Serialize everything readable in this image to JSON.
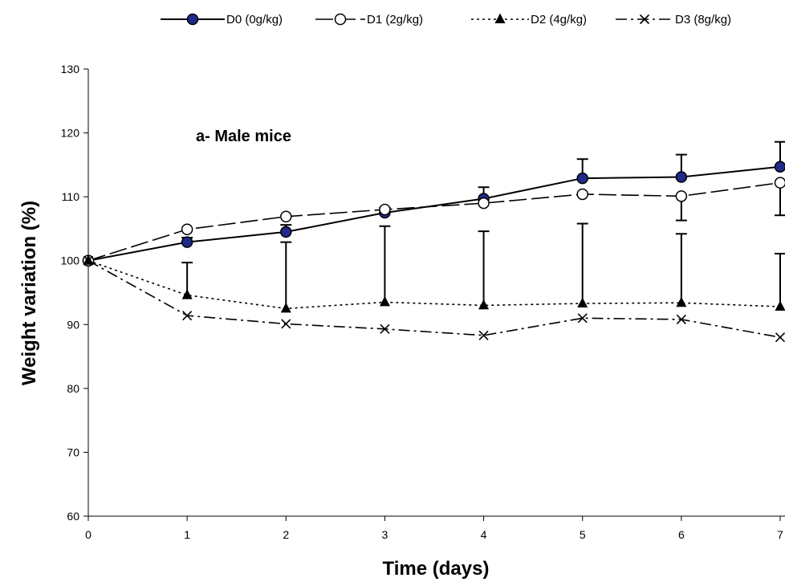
{
  "chart_data": {
    "type": "line",
    "title": "",
    "annotation": "a-  Male mice",
    "xlabel": "Time (days)",
    "ylabel": "Weight variation  (%)",
    "x": [
      0,
      1,
      2,
      3,
      4,
      5,
      6,
      7
    ],
    "xlim": [
      0,
      7
    ],
    "ylim": [
      60,
      130
    ],
    "yticks": [
      60,
      70,
      80,
      90,
      100,
      110,
      120,
      130
    ],
    "grid": false,
    "legend_position": "top",
    "series": [
      {
        "name": "D0 (0g/kg)",
        "marker": "filled-circle",
        "line": "solid",
        "color": "#000000",
        "marker_fill": "#1f2a8a",
        "values": [
          100,
          102.9,
          104.5,
          107.5,
          109.7,
          112.9,
          113.1,
          114.7
        ],
        "error_upper": [
          null,
          103.6,
          105.6,
          108.3,
          111.5,
          115.9,
          116.6,
          118.6
        ]
      },
      {
        "name": "D1 (2g/kg)",
        "marker": "open-circle",
        "line": "long-dash",
        "color": "#000000",
        "values": [
          100,
          104.9,
          106.9,
          108.0,
          109.0,
          110.4,
          110.1,
          112.2
        ],
        "error_lower": [
          null,
          null,
          null,
          null,
          null,
          null,
          106.3,
          107.1
        ]
      },
      {
        "name": "D2 (4g/kg)",
        "marker": "filled-triangle",
        "line": "dotted",
        "color": "#000000",
        "values": [
          100,
          94.6,
          92.5,
          93.5,
          93.0,
          93.3,
          93.4,
          92.8
        ],
        "error_upper": [
          null,
          99.7,
          102.9,
          105.4,
          104.6,
          105.8,
          104.2,
          101.1
        ]
      },
      {
        "name": "D3 (8g/kg)",
        "marker": "cross",
        "line": "dash-dot",
        "color": "#000000",
        "values": [
          100,
          91.4,
          90.1,
          89.3,
          88.3,
          91.0,
          90.8,
          88.0
        ]
      }
    ]
  }
}
